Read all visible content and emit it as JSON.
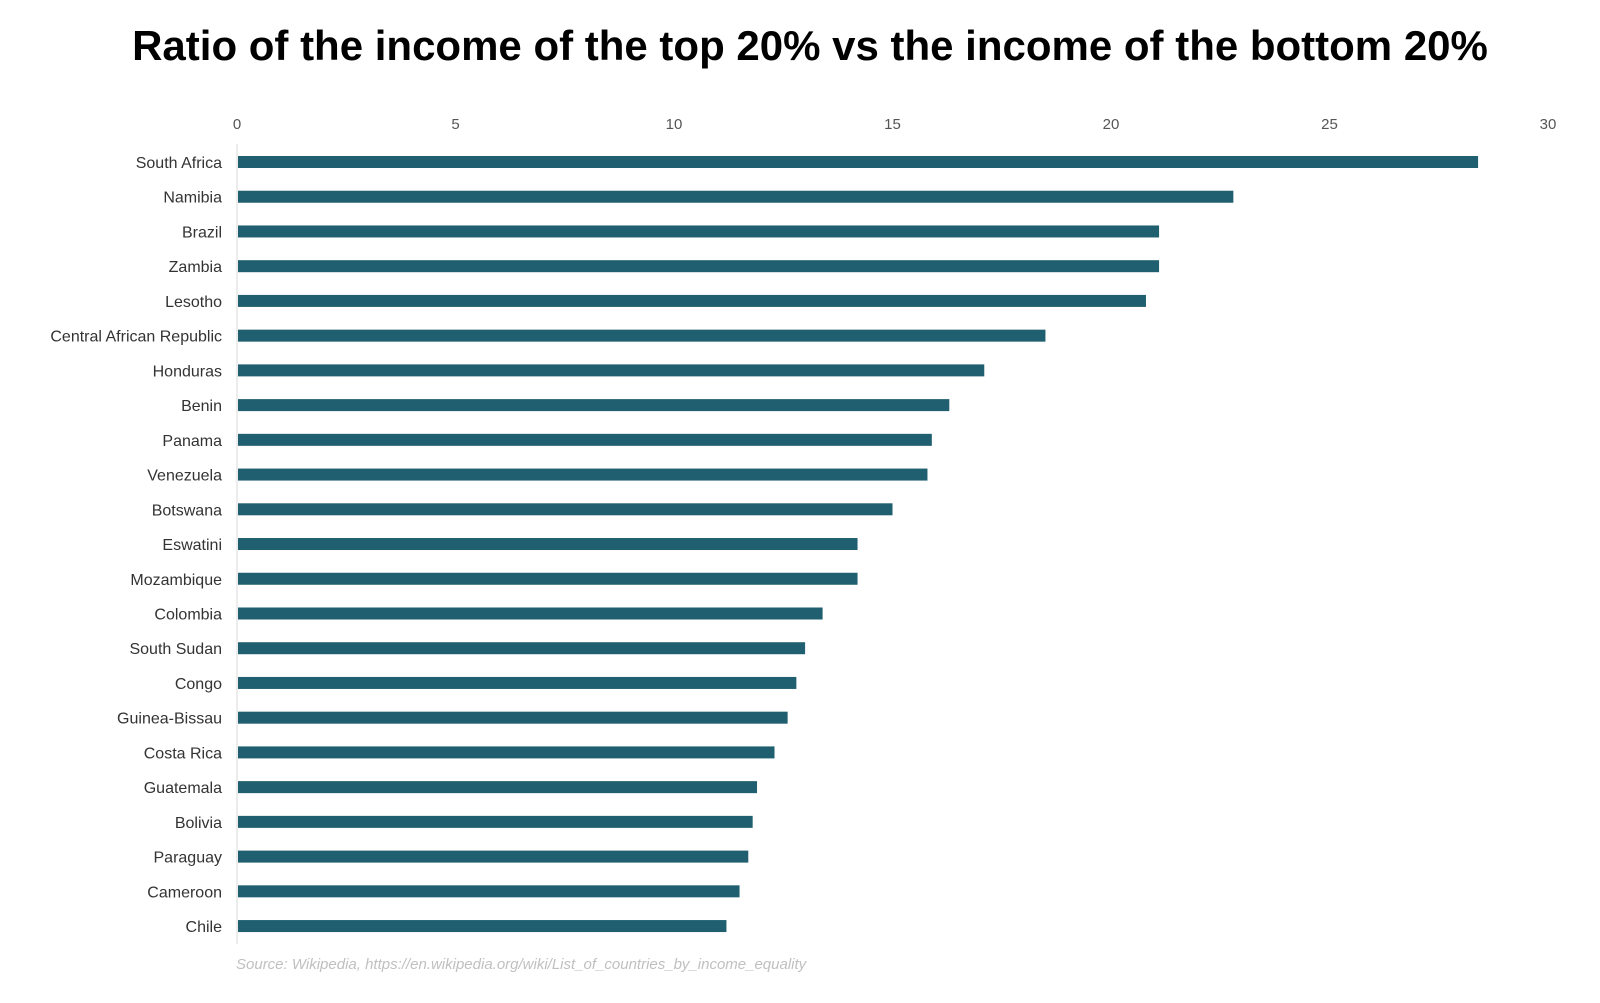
{
  "chart_data": {
    "type": "bar",
    "orientation": "horizontal",
    "title": "Ratio of the income of the top 20% vs the income of the bottom 20%",
    "xlabel": "",
    "ylabel": "",
    "xlim": [
      0,
      30
    ],
    "x_ticks": [
      "0",
      "5",
      "10",
      "15",
      "20",
      "25",
      "30"
    ],
    "x_axis_position": "top",
    "grid": false,
    "legend": "none",
    "bar_color": "#1f5f6f",
    "categories": [
      "South Africa",
      "Namibia",
      "Brazil",
      "Zambia",
      "Lesotho",
      "Central African Republic",
      "Honduras",
      "Benin",
      "Panama",
      "Venezuela",
      "Botswana",
      "Eswatini",
      "Mozambique",
      "Colombia",
      "South Sudan",
      "Congo",
      "Guinea-Bissau",
      "Costa Rica",
      "Guatemala",
      "Bolivia",
      "Paraguay",
      "Cameroon",
      "Chile"
    ],
    "values": [
      28.4,
      22.8,
      21.1,
      21.1,
      20.8,
      18.5,
      17.1,
      16.3,
      15.9,
      15.8,
      15.0,
      14.2,
      14.2,
      13.4,
      13.0,
      12.8,
      12.6,
      12.3,
      11.9,
      11.8,
      11.7,
      11.5,
      11.2
    ],
    "source": "Source: Wikipedia, https://en.wikipedia.org/wiki/List_of_countries_by_income_equality"
  }
}
